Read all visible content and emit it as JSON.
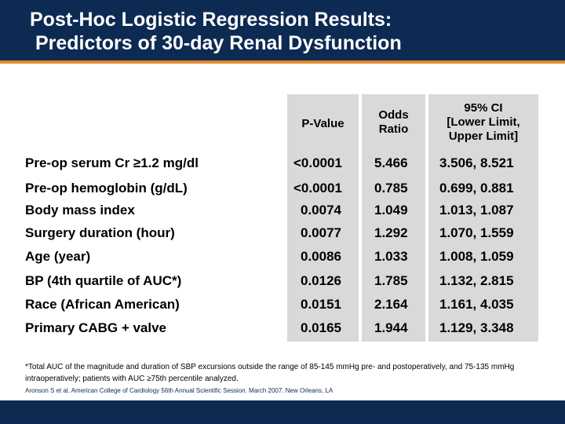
{
  "slide": {
    "title_line1": "Post-Hoc Logistic Regression Results:",
    "title_line2": " Predictors of 30-day Renal Dysfunction"
  },
  "table": {
    "headers": {
      "p_value": "P-Value",
      "odds_ratio": "Odds\nRatio",
      "ci": "95% CI\n[Lower Limit,\nUpper Limit]"
    },
    "rows": [
      {
        "label": "Pre-op serum Cr ≥1.2 mg/dl",
        "p": "<0.0001",
        "or": "5.466",
        "ci": "3.506, 8.521"
      },
      {
        "label": "Pre-op hemoglobin (g/dL)",
        "p": "<0.0001",
        "or": "0.785",
        "ci": "0.699, 0.881"
      },
      {
        "label": "Body mass index",
        "p": "0.0074",
        "or": "1.049",
        "ci": "1.013, 1.087"
      },
      {
        "label": "Surgery duration (hour)",
        "p": "0.0077",
        "or": "1.292",
        "ci": "1.070, 1.559"
      },
      {
        "label": "Age (year)",
        "p": "0.0086",
        "or": "1.033",
        "ci": "1.008, 1.059"
      },
      {
        "label": "BP (4th quartile of AUC*)",
        "p": "0.0126",
        "or": "1.785",
        "ci": "1.132, 2.815"
      },
      {
        "label": "Race (African American)",
        "p": "0.0151",
        "or": "2.164",
        "ci": "1.161, 4.035"
      },
      {
        "label": "Primary CABG + valve",
        "p": "0.0165",
        "or": "1.944",
        "ci": "1.129, 3.348"
      }
    ]
  },
  "footnote": "*Total AUC of the magnitude and duration of SBP excursions outside the range of 85-145 mmHg pre- and postoperatively, and 75-135 mmHg intraoperatively; patients with AUC ≥75th percentile analyzed.",
  "citation": "Aronson S et al. American College of Cardiology 56th Annual Scientific Session. March 2007. New Orleans, LA",
  "colors": {
    "navy": "#0d2a52",
    "orange": "#e08a2c",
    "column_gray": "#d9d9d9"
  }
}
